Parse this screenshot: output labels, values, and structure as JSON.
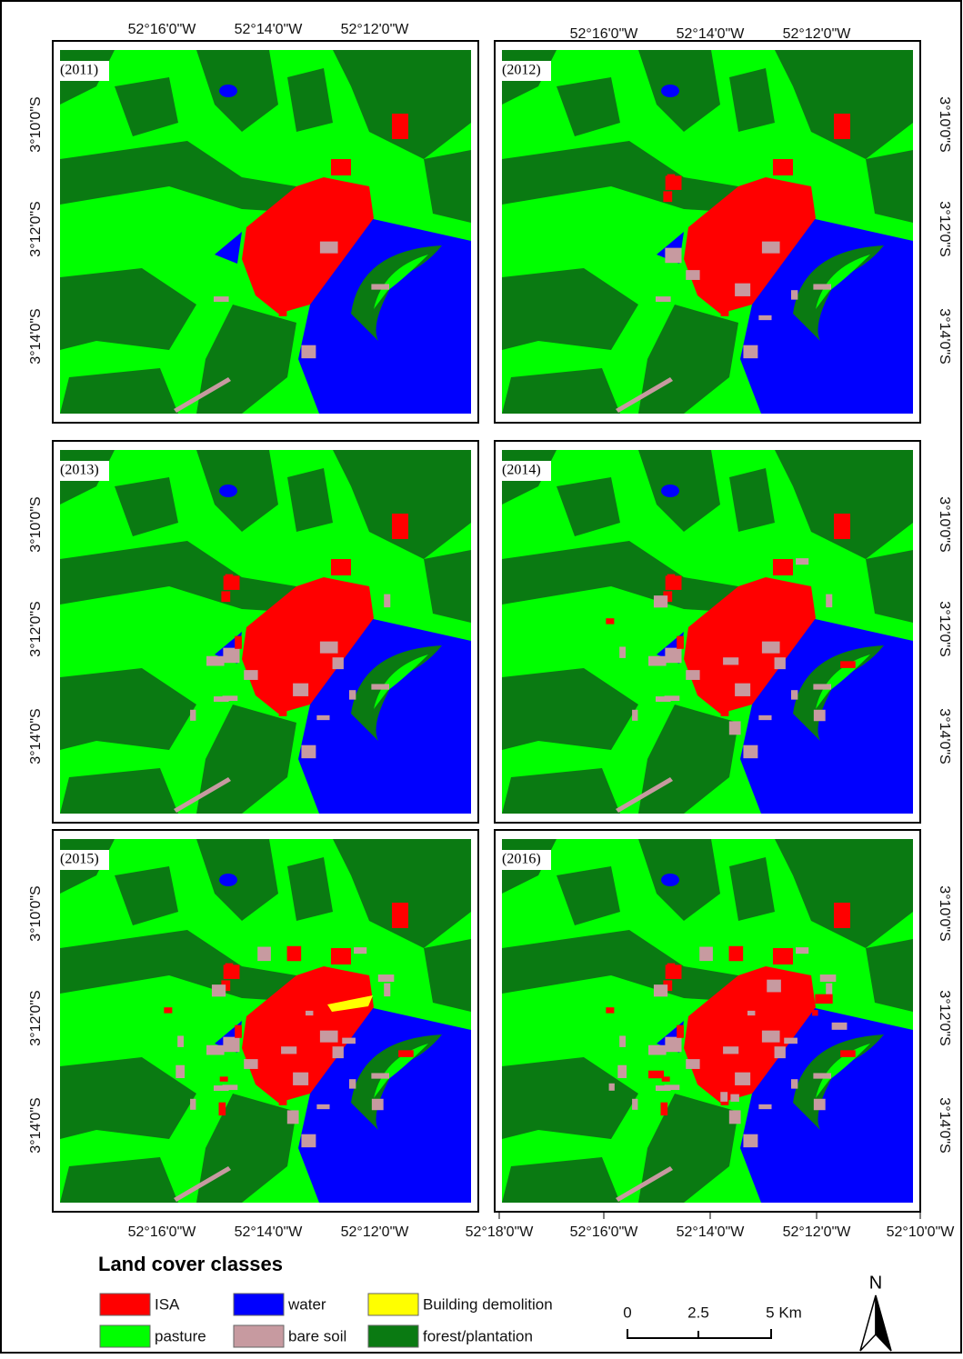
{
  "panels": [
    {
      "label": "(2011)"
    },
    {
      "label": "(2012)"
    },
    {
      "label": "(2013)"
    },
    {
      "label": "(2014)"
    },
    {
      "label": "(2015)"
    },
    {
      "label": "(2016)"
    }
  ],
  "coordinates": {
    "left_top_lon": [
      "52°16'0\"W",
      "52°14'0\"W",
      "52°12'0\"W"
    ],
    "right_top_lon": [
      "52°16'0\"W",
      "52°14'0\"W",
      "52°12'0\"W"
    ],
    "left_bottom_lon": [
      "52°16'0\"W",
      "52°14'0\"W",
      "52°12'0\"W"
    ],
    "right_bottom_lon": [
      "52°18'0\"W",
      "52°16'0\"W",
      "52°14'0\"W",
      "52°12'0\"W",
      "52°10'0\"W"
    ],
    "lat": [
      "3°10'0\"S",
      "3°12'0\"S",
      "3°14'0\"S"
    ]
  },
  "legend": {
    "title": "Land cover classes",
    "items": [
      {
        "label": "ISA",
        "color": "#ff0000"
      },
      {
        "label": "water",
        "color": "#0000ff"
      },
      {
        "label": "Building demolition",
        "color": "#ffff00"
      },
      {
        "label": "pasture",
        "color": "#00ff00"
      },
      {
        "label": "bare soil",
        "color": "#c79aa0"
      },
      {
        "label": "forest/plantation",
        "color": "#0a7a12"
      }
    ]
  },
  "scale_bar": {
    "labels": [
      "0",
      "2.5",
      "5 Km"
    ]
  },
  "north_arrow": {
    "label": "N"
  }
}
